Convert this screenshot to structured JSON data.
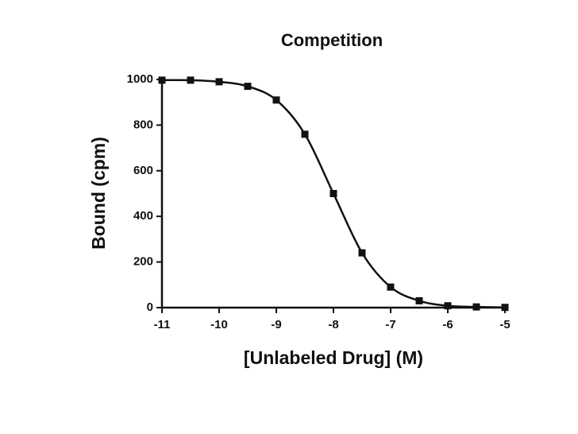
{
  "chart_data": {
    "type": "scatter",
    "title": "Competition",
    "x_label": "[Unlabeled Drug] (M)",
    "y_label": "Bound (cpm)",
    "x": [
      -11,
      -10.5,
      -10,
      -9.5,
      -9,
      -8.5,
      -8,
      -7.5,
      -7,
      -6.5,
      -6,
      -5.5,
      -5
    ],
    "values": [
      997,
      997,
      990,
      970,
      910,
      760,
      500,
      240,
      90,
      30,
      8,
      3,
      1
    ],
    "color": "#111111",
    "line": true,
    "xlim": [
      -11,
      -5
    ],
    "xticks": [
      -11,
      -10,
      -9,
      -8,
      -7,
      -6,
      -5
    ],
    "ylim": [
      0,
      1000
    ],
    "yticks": [
      0,
      200,
      400,
      600,
      800,
      1000
    ],
    "grid": false
  }
}
